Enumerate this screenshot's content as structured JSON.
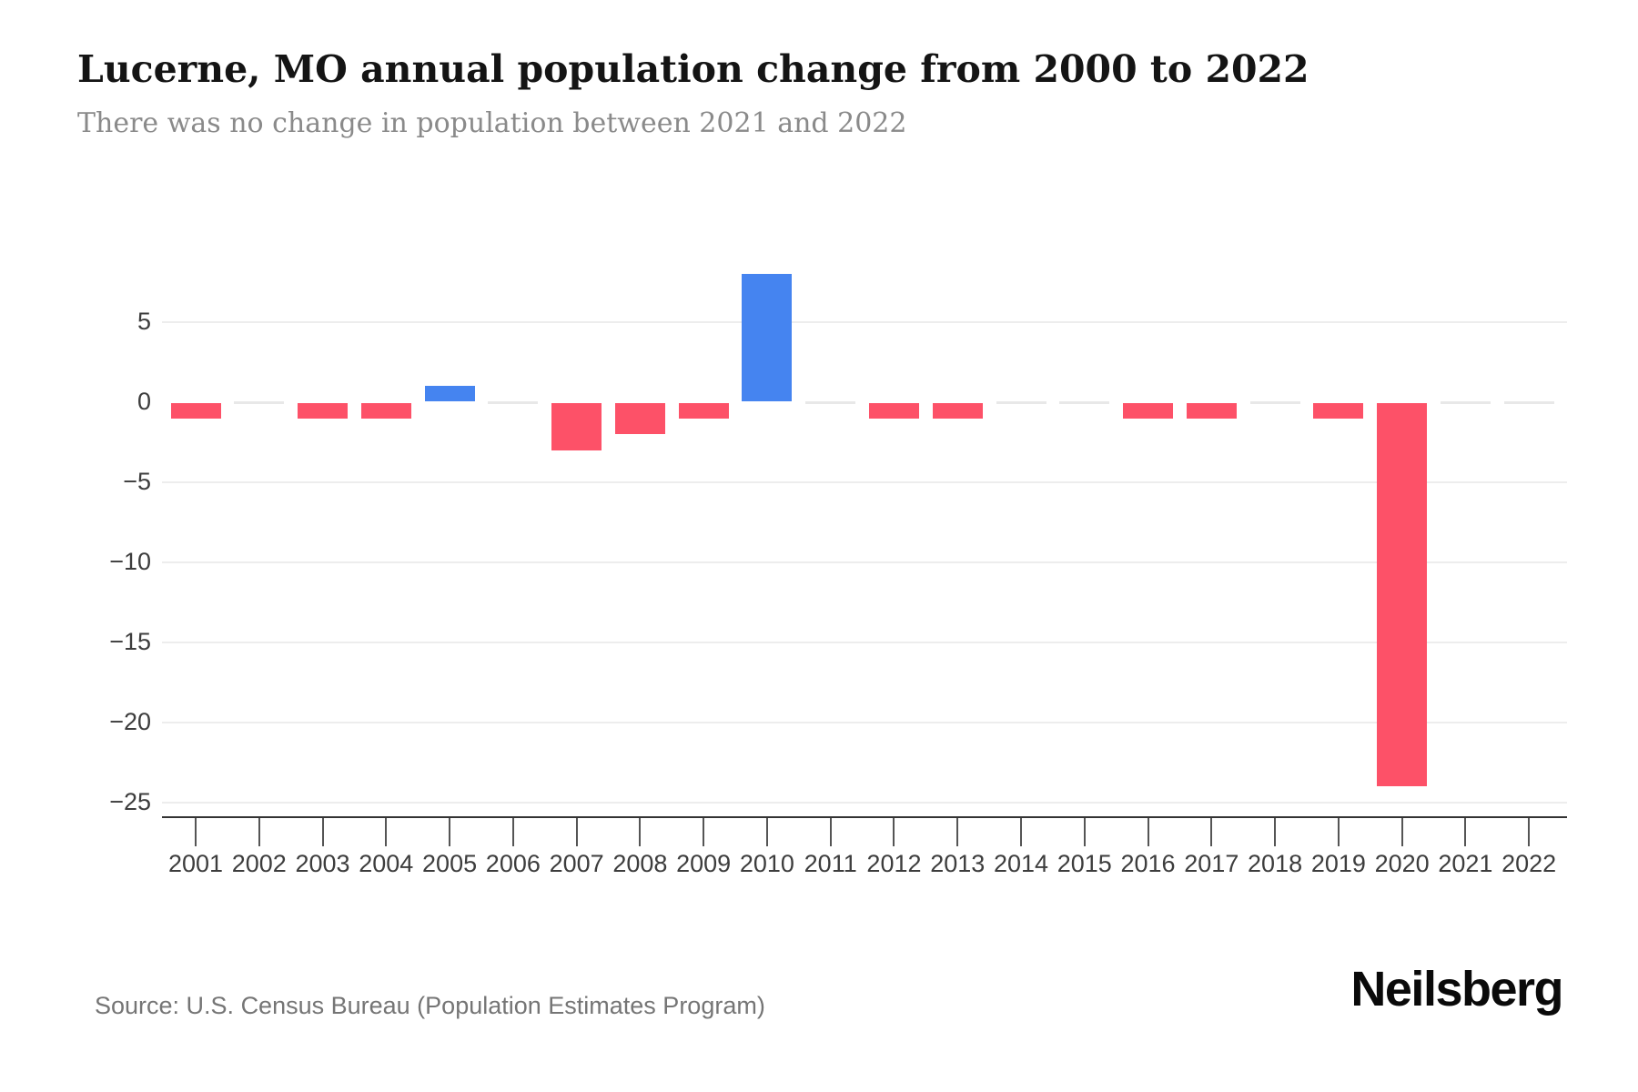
{
  "header": {
    "title": "Lucerne, MO annual population change from 2000 to 2022",
    "subtitle": "There was no change in population between 2021 and 2022"
  },
  "footer": {
    "source": "Source: U.S. Census Bureau (Population Estimates Program)",
    "brand": "Neilsberg"
  },
  "chart_data": {
    "type": "bar",
    "title": "Lucerne, MO annual population change from 2000 to 2022",
    "subtitle": "There was no change in population between 2021 and 2022",
    "categories": [
      "2001",
      "2002",
      "2003",
      "2004",
      "2005",
      "2006",
      "2007",
      "2008",
      "2009",
      "2010",
      "2011",
      "2012",
      "2013",
      "2014",
      "2015",
      "2016",
      "2017",
      "2018",
      "2019",
      "2020",
      "2021",
      "2022"
    ],
    "values": [
      -1,
      0,
      -1,
      -1,
      1,
      0,
      -3,
      -2,
      -1,
      8,
      0,
      -1,
      -1,
      0,
      0,
      -1,
      -1,
      0,
      -1,
      -24,
      0,
      0
    ],
    "xlabel": "",
    "ylabel": "",
    "ylim": [
      -25,
      8
    ],
    "yticks": [
      5,
      0,
      -5,
      -10,
      -15,
      -20,
      -25
    ],
    "ytick_labels": [
      "5",
      "0",
      "−5",
      "−10",
      "−15",
      "−20",
      "−25"
    ],
    "gridline_values": [
      5,
      -5,
      -10,
      -15,
      -20,
      -25
    ],
    "grid": true,
    "legend": false,
    "colors": {
      "positive": "#4584f0",
      "negative": "#fd5168",
      "zero_marker": "#e8e8e8",
      "gridline": "#ededed",
      "axis": "#333333"
    }
  }
}
